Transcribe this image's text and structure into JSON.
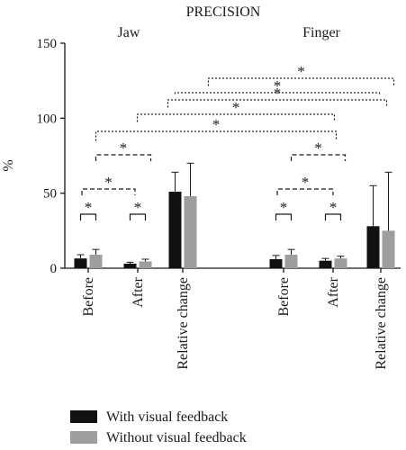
{
  "chart_data": {
    "type": "bar",
    "title": "PRECISION",
    "ylabel": "%",
    "ylim": [
      0,
      150
    ],
    "yticks": [
      0,
      50,
      100,
      150
    ],
    "grid": false,
    "legend_position": "bottom-left",
    "groups": [
      {
        "name": "Jaw",
        "categories": [
          "Before",
          "After",
          "Relative change"
        ],
        "series": [
          {
            "name": "With visual feedback",
            "values": [
              6.5,
              3.0,
              51
            ],
            "errors": [
              2.5,
              1.0,
              13
            ]
          },
          {
            "name": "Without visual feedback",
            "values": [
              9,
              4.5,
              48
            ],
            "errors": [
              3.5,
              1.5,
              22
            ]
          }
        ]
      },
      {
        "name": "Finger",
        "categories": [
          "Before",
          "After",
          "Relative change"
        ],
        "series": [
          {
            "name": "With visual feedback",
            "values": [
              6,
              5,
              28
            ],
            "errors": [
              2.5,
              1.5,
              27
            ]
          },
          {
            "name": "Without visual feedback",
            "values": [
              9,
              6.5,
              25
            ],
            "errors": [
              3.5,
              1.5,
              39
            ]
          }
        ]
      }
    ],
    "annotations": [
      {
        "label": "*",
        "style": "solid",
        "from": "Jaw Before: With visual feedback",
        "to": "Jaw Before: Without visual feedback"
      },
      {
        "label": "*",
        "style": "solid",
        "from": "Jaw After: With visual feedback",
        "to": "Jaw After: Without visual feedback"
      },
      {
        "label": "*",
        "style": "dashed",
        "from": "Jaw Before",
        "to": "Jaw After"
      },
      {
        "label": "*",
        "style": "dashed",
        "from": "Jaw Before: Without visual feedback",
        "to": "Jaw After: Without visual feedback"
      },
      {
        "label": "*",
        "style": "solid",
        "from": "Finger Before: With visual feedback",
        "to": "Finger Before: Without visual feedback"
      },
      {
        "label": "*",
        "style": "solid",
        "from": "Finger After: With visual feedback",
        "to": "Finger After: Without visual feedback"
      },
      {
        "label": "*",
        "style": "dashed",
        "from": "Finger Before",
        "to": "Finger After"
      },
      {
        "label": "*",
        "style": "dashed",
        "from": "Finger Before: Without visual feedback",
        "to": "Finger After: Without visual feedback"
      },
      {
        "label": "*",
        "style": "dotted",
        "from": "Jaw Before: Without visual feedback",
        "to": "Finger Before: Without visual feedback"
      },
      {
        "label": "*",
        "style": "dotted",
        "from": "Jaw Before: With visual feedback",
        "to": "Finger After: With visual feedback"
      },
      {
        "label": "*",
        "style": "dotted",
        "from": "Jaw After: Without visual feedback",
        "to": "Finger After: Without visual feedback"
      },
      {
        "label": "*",
        "style": "dotted",
        "from": "Jaw Relative change: With visual feedback",
        "to": "Finger Relative change: With visual feedback"
      },
      {
        "label": "*",
        "style": "dotted",
        "from": "Jaw Relative change: Without visual feedback",
        "to": "Finger Relative change: Without visual feedback"
      }
    ],
    "colors": {
      "with_feedback": "#111111",
      "without_feedback": "#9e9e9e",
      "axis": "#1a1a1a"
    }
  }
}
